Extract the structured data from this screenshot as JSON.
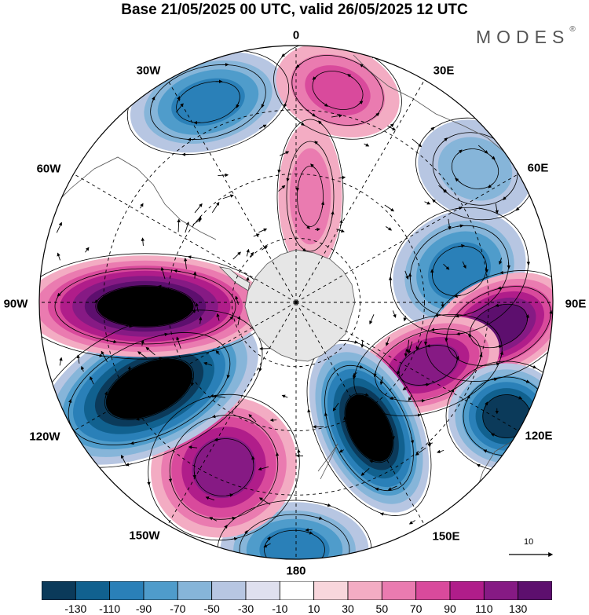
{
  "title": "Base 21/05/2025 00 UTC, valid 26/05/2025 12 UTC",
  "brand": "MODES",
  "brand_mark": "®",
  "longitude_labels": {
    "lon_0": "0",
    "lon_30e": "30E",
    "lon_60e": "60E",
    "lon_90e": "90E",
    "lon_120e": "120E",
    "lon_150e": "150E",
    "lon_180": "180",
    "lon_150w": "150W",
    "lon_120w": "120W",
    "lon_90w": "90W",
    "lon_60w": "60W",
    "lon_30w": "30W"
  },
  "reference_vector": {
    "label": "10"
  },
  "colorbar": {
    "ticks": [
      "-130",
      "-110",
      "-90",
      "-70",
      "-50",
      "-30",
      "-10",
      "10",
      "30",
      "50",
      "70",
      "90",
      "110",
      "130"
    ],
    "colors": [
      "#0b3a5a",
      "#11618f",
      "#2a80b8",
      "#4f9ccb",
      "#86b5d9",
      "#b7c6e2",
      "#dfe0ef",
      "#ffffff",
      "#f8d6dc",
      "#f3acc3",
      "#ea7bb0",
      "#d94a9c",
      "#b01d8a",
      "#861a84",
      "#5d0f6e"
    ]
  },
  "anomaly_centers": [
    {
      "sign": "negative",
      "level": 4,
      "name": "low-30w"
    },
    {
      "sign": "positive",
      "level": 3,
      "name": "high-15e"
    },
    {
      "sign": "negative",
      "level": 2,
      "name": "low-50e"
    },
    {
      "sign": "negative",
      "level": 4,
      "name": "low-70e"
    },
    {
      "sign": "positive",
      "level": 6,
      "name": "high-95e"
    },
    {
      "sign": "positive",
      "level": 5,
      "name": "high-80e-inner"
    },
    {
      "sign": "negative",
      "level": 6,
      "name": "low-125e"
    },
    {
      "sign": "negative",
      "level": 7,
      "name": "low-165e"
    },
    {
      "sign": "negative",
      "level": 4,
      "name": "low-180"
    },
    {
      "sign": "positive",
      "level": 5,
      "name": "high-145w"
    },
    {
      "sign": "negative",
      "level": 7,
      "name": "low-115w"
    },
    {
      "sign": "positive",
      "level": 7,
      "name": "high-90w"
    },
    {
      "sign": "positive",
      "level": 2,
      "name": "high-0"
    }
  ]
}
